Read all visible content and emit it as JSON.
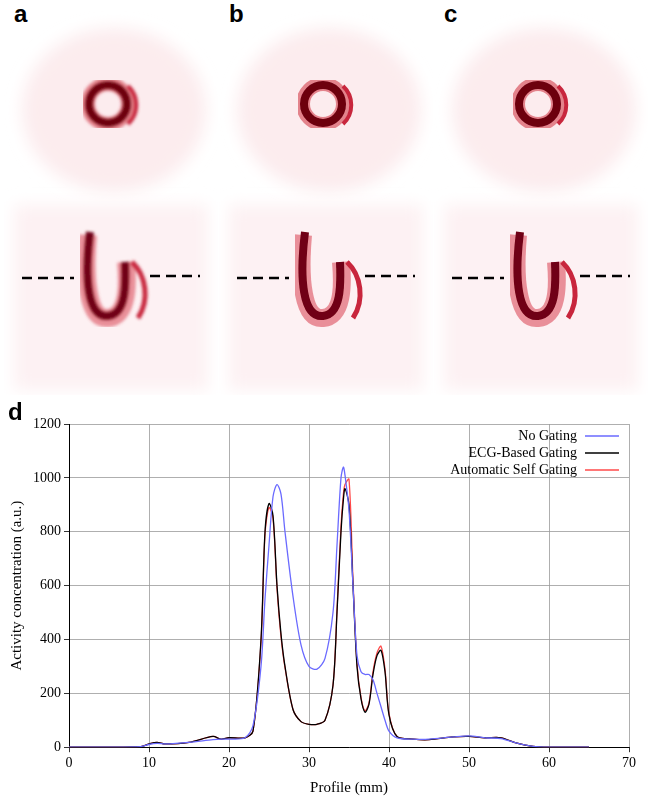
{
  "panels": [
    {
      "label": "a"
    },
    {
      "label": "b"
    },
    {
      "label": "c"
    }
  ],
  "chart_data": {
    "type": "line",
    "panel_label": "d",
    "xlabel": "Profile (mm)",
    "ylabel": "Activity concentration (a.u.)",
    "x": [
      0,
      5,
      9,
      10,
      11,
      12,
      15,
      18,
      19,
      20,
      22,
      23,
      24,
      24.5,
      25,
      25.5,
      26,
      26.5,
      27,
      28,
      29,
      30,
      31,
      32,
      33,
      33.5,
      34,
      34.3,
      34.5,
      35,
      35.5,
      36,
      36.5,
      37,
      37.5,
      38,
      38.5,
      39,
      39.5,
      40,
      41,
      43,
      45,
      48,
      50,
      52,
      54,
      56,
      58,
      60,
      65
    ],
    "series": [
      {
        "name": "No Gating",
        "color": "#6a6aff",
        "values": [
          0,
          0,
          2,
          10,
          14,
          12,
          18,
          28,
          30,
          30,
          35,
          80,
          300,
          550,
          750,
          930,
          975,
          940,
          800,
          560,
          380,
          300,
          290,
          330,
          500,
          750,
          1000,
          1040,
          1010,
          880,
          600,
          340,
          280,
          270,
          270,
          250,
          200,
          150,
          100,
          60,
          35,
          30,
          30,
          38,
          42,
          35,
          32,
          15,
          3,
          0,
          0
        ]
      },
      {
        "name": "ECG-Based Gating",
        "color": "#000000",
        "values": [
          0,
          0,
          2,
          12,
          18,
          12,
          18,
          40,
          30,
          35,
          35,
          60,
          400,
          800,
          905,
          860,
          600,
          420,
          300,
          140,
          95,
          85,
          85,
          100,
          230,
          500,
          800,
          920,
          960,
          900,
          600,
          300,
          180,
          130,
          160,
          270,
          340,
          360,
          280,
          120,
          40,
          30,
          28,
          38,
          40,
          35,
          35,
          15,
          3,
          0,
          0
        ]
      },
      {
        "name": "Automatic Self Gating",
        "color": "#ff4a4a",
        "values": [
          0,
          0,
          2,
          12,
          18,
          12,
          18,
          40,
          30,
          35,
          35,
          60,
          390,
          790,
          890,
          850,
          590,
          410,
          295,
          140,
          95,
          85,
          85,
          100,
          230,
          510,
          820,
          940,
          975,
          995,
          620,
          310,
          185,
          135,
          165,
          280,
          350,
          375,
          290,
          125,
          40,
          30,
          28,
          38,
          40,
          35,
          35,
          15,
          3,
          0,
          0
        ]
      }
    ],
    "xlim": [
      0,
      70
    ],
    "xticks": [
      0,
      10,
      20,
      30,
      40,
      50,
      60,
      70
    ],
    "ylim": [
      0,
      1200
    ],
    "yticks": [
      0,
      200,
      400,
      600,
      800,
      1000,
      1200
    ],
    "grid": true,
    "legend": "top-right"
  }
}
